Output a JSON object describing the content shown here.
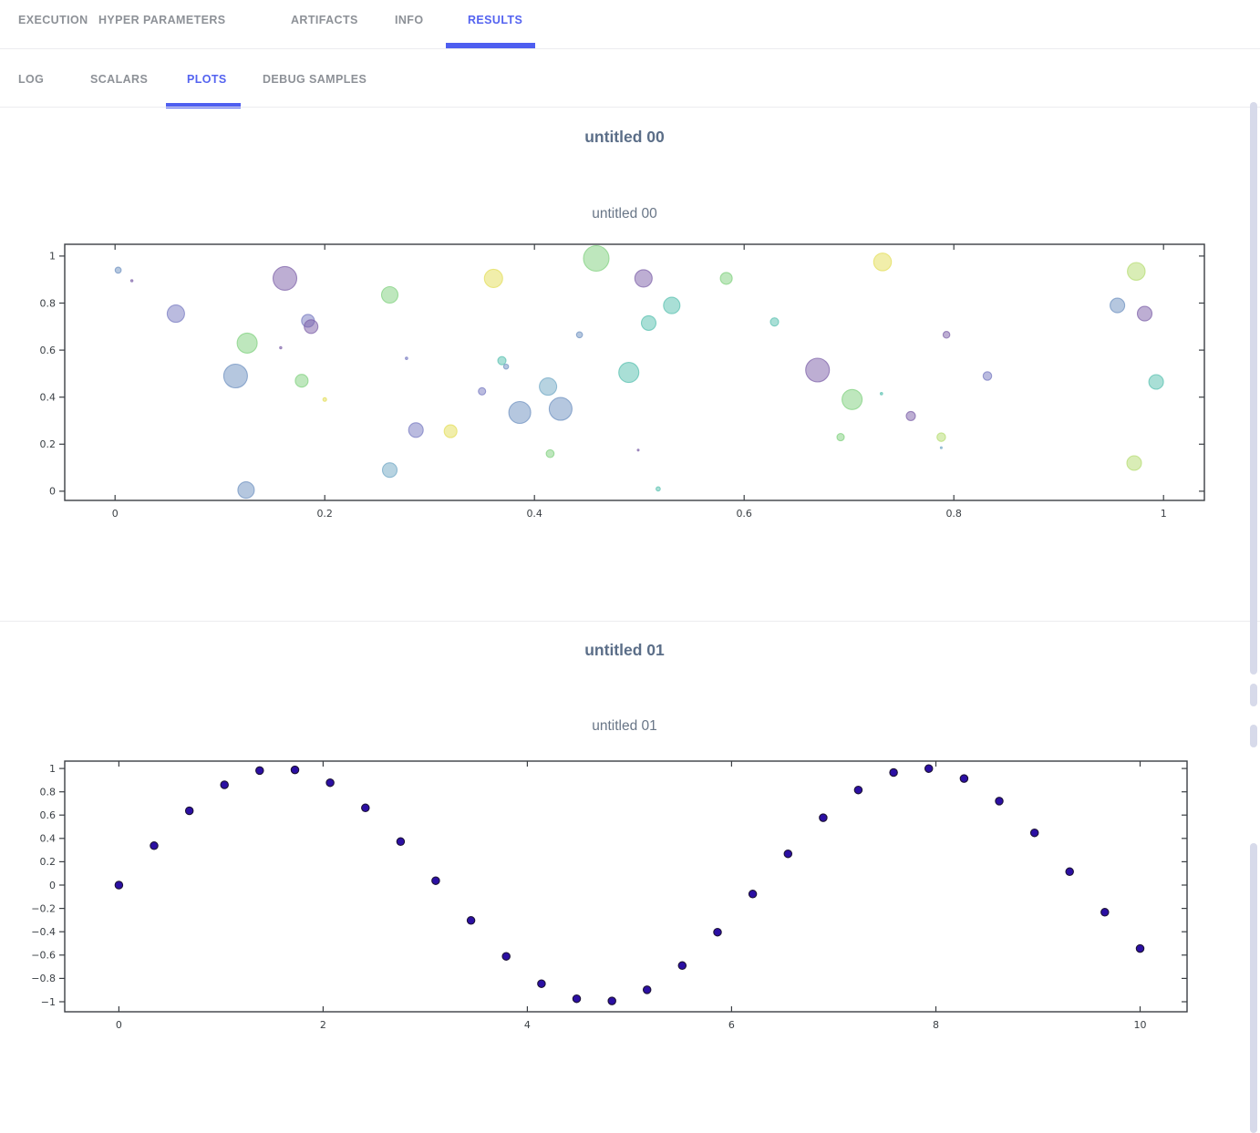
{
  "tabs": [
    {
      "label": "EXECUTION",
      "active": false
    },
    {
      "label": "HYPER PARAMETERS",
      "active": false
    },
    {
      "label": "ARTIFACTS",
      "active": false
    },
    {
      "label": "INFO",
      "active": false
    },
    {
      "label": "RESULTS",
      "active": true
    }
  ],
  "subtabs": [
    {
      "label": "LOG",
      "active": false
    },
    {
      "label": "SCALARS",
      "active": false
    },
    {
      "label": "PLOTS",
      "active": true
    },
    {
      "label": "DEBUG SAMPLES",
      "active": false
    }
  ],
  "sections": [
    {
      "header": "untitled 00",
      "figure_title": "untitled 00"
    },
    {
      "header": "untitled 01",
      "figure_title": "untitled 01"
    }
  ],
  "colors": {
    "accent": "#5463f0",
    "tab_indicator": "#4e5ef0",
    "tab_inactive": "#8d9197",
    "divider": "#ececef",
    "scrollbar_thumb": "#d7daea",
    "axis": "#3b3f44",
    "tick_label": "#3b4045"
  },
  "chart_data": [
    {
      "type": "scatter",
      "variant": "bubble",
      "title": "untitled 00",
      "xlim": [
        -0.048,
        1.039
      ],
      "ylim": [
        -0.039,
        1.05
      ],
      "xticks": [
        0,
        0.2,
        0.4,
        0.6,
        0.8,
        1
      ],
      "yticks": [
        0,
        0.2,
        0.4,
        0.6,
        0.8,
        1
      ],
      "grid": false,
      "legend": "none",
      "palette": {
        "P": "#7b5ea7",
        "V": "#7577c0",
        "S": "#6b8fbf",
        "C": "#6fa7c4",
        "T": "#54bfae",
        "G": "#7ed07c",
        "L": "#b4dc6e",
        "Y": "#e3dd55"
      },
      "marker": {
        "fill_opacity": 0.5,
        "stroke_opacity": 0.7
      },
      "points": [
        [
          0.003,
          0.94,
          3.3,
          "S"
        ],
        [
          0.016,
          0.895,
          1.2,
          "P"
        ],
        [
          0.058,
          0.755,
          9.5,
          "V"
        ],
        [
          0.162,
          0.905,
          13,
          "P"
        ],
        [
          0.262,
          0.835,
          9,
          "G"
        ],
        [
          0.184,
          0.725,
          7,
          "V"
        ],
        [
          0.187,
          0.7,
          7.5,
          "P"
        ],
        [
          0.126,
          0.63,
          11,
          "G"
        ],
        [
          0.158,
          0.61,
          1.2,
          "P"
        ],
        [
          0.278,
          0.565,
          1.3,
          "V"
        ],
        [
          0.115,
          0.49,
          13,
          "S"
        ],
        [
          0.178,
          0.47,
          7,
          "G"
        ],
        [
          0.2,
          0.39,
          2,
          "Y"
        ],
        [
          0.287,
          0.26,
          8,
          "V"
        ],
        [
          0.262,
          0.09,
          8,
          "C"
        ],
        [
          0.125,
          0.005,
          9,
          "S"
        ],
        [
          0.459,
          0.99,
          14,
          "G"
        ],
        [
          0.361,
          0.905,
          10,
          "Y"
        ],
        [
          0.504,
          0.905,
          9.5,
          "P"
        ],
        [
          0.583,
          0.905,
          6.5,
          "G"
        ],
        [
          0.531,
          0.79,
          9,
          "T"
        ],
        [
          0.509,
          0.715,
          8,
          "T"
        ],
        [
          0.629,
          0.72,
          4.5,
          "T"
        ],
        [
          0.443,
          0.665,
          3.3,
          "S"
        ],
        [
          0.369,
          0.555,
          4.5,
          "T"
        ],
        [
          0.373,
          0.53,
          2.7,
          "S"
        ],
        [
          0.49,
          0.505,
          11,
          "T"
        ],
        [
          0.67,
          0.515,
          13,
          "P"
        ],
        [
          0.35,
          0.425,
          4,
          "V"
        ],
        [
          0.413,
          0.445,
          9.5,
          "C"
        ],
        [
          0.386,
          0.335,
          12,
          "S"
        ],
        [
          0.425,
          0.35,
          12.5,
          "S"
        ],
        [
          0.32,
          0.255,
          7,
          "Y"
        ],
        [
          0.415,
          0.16,
          4.3,
          "G"
        ],
        [
          0.499,
          0.175,
          1,
          "P"
        ],
        [
          0.518,
          0.01,
          2.3,
          "T"
        ],
        [
          0.732,
          0.975,
          9.7,
          "Y"
        ],
        [
          0.974,
          0.935,
          9.7,
          "L"
        ],
        [
          0.956,
          0.79,
          8,
          "S"
        ],
        [
          0.982,
          0.755,
          8,
          "P"
        ],
        [
          0.793,
          0.665,
          3.7,
          "P"
        ],
        [
          0.832,
          0.49,
          4.7,
          "V"
        ],
        [
          0.993,
          0.465,
          8,
          "T"
        ],
        [
          0.703,
          0.39,
          11,
          "G"
        ],
        [
          0.731,
          0.415,
          1.3,
          "T"
        ],
        [
          0.759,
          0.32,
          5,
          "P"
        ],
        [
          0.692,
          0.23,
          4,
          "G"
        ],
        [
          0.788,
          0.23,
          4.7,
          "L"
        ],
        [
          0.788,
          0.185,
          1,
          "C"
        ],
        [
          0.972,
          0.12,
          8,
          "L"
        ]
      ]
    },
    {
      "type": "scatter",
      "variant": "sine",
      "title": "untitled 01",
      "xlim": [
        -0.53,
        10.46
      ],
      "ylim": [
        -1.086,
        1.063
      ],
      "xticks": [
        0,
        2,
        4,
        6,
        8,
        10
      ],
      "yticks": [
        -1,
        -0.8,
        -0.6,
        -0.4,
        -0.2,
        0,
        0.2,
        0.4,
        0.6,
        0.8,
        1
      ],
      "grid": false,
      "legend": "none",
      "marker": {
        "color": "#2b0fa3",
        "edge": "#1c1236",
        "radius": 4.2
      },
      "points": [
        [
          0,
          0
        ],
        [
          0.345,
          0.338
        ],
        [
          0.69,
          0.637
        ],
        [
          1.034,
          0.86
        ],
        [
          1.379,
          0.982
        ],
        [
          1.724,
          0.988
        ],
        [
          2.069,
          0.878
        ],
        [
          2.414,
          0.662
        ],
        [
          2.759,
          0.373
        ],
        [
          3.103,
          0.038
        ],
        [
          3.448,
          -0.303
        ],
        [
          3.793,
          -0.611
        ],
        [
          4.138,
          -0.845
        ],
        [
          4.483,
          -0.974
        ],
        [
          4.828,
          -0.993
        ],
        [
          5.172,
          -0.898
        ],
        [
          5.517,
          -0.69
        ],
        [
          5.862,
          -0.404
        ],
        [
          6.207,
          -0.076
        ],
        [
          6.552,
          0.268
        ],
        [
          6.897,
          0.578
        ],
        [
          7.241,
          0.815
        ],
        [
          7.586,
          0.965
        ],
        [
          7.931,
          0.999
        ],
        [
          8.276,
          0.914
        ],
        [
          8.621,
          0.72
        ],
        [
          8.966,
          0.448
        ],
        [
          9.31,
          0.115
        ],
        [
          9.655,
          -0.233
        ],
        [
          10,
          -0.544
        ]
      ]
    }
  ]
}
